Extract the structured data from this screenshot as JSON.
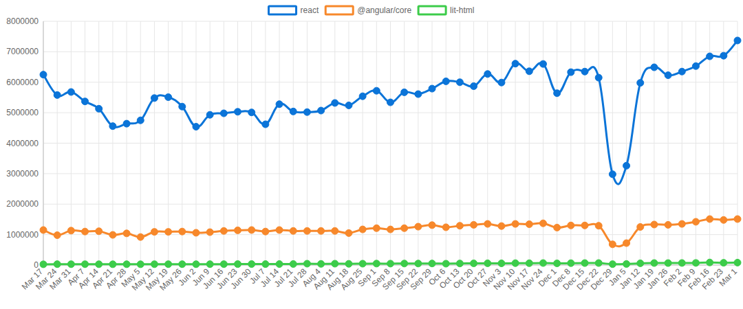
{
  "chart_data": {
    "type": "line",
    "categories": [
      "Mar 17",
      "Mar 24",
      "Mar 31",
      "Apr 7",
      "Apr 14",
      "Apr 21",
      "Apr 28",
      "May 5",
      "May 12",
      "May 19",
      "May 26",
      "Jun 2",
      "Jun 9",
      "Jun 16",
      "Jun 23",
      "Jun 30",
      "Jul 7",
      "Jul 14",
      "Jul 21",
      "Jul 28",
      "Aug 4",
      "Aug 11",
      "Aug 18",
      "Aug 25",
      "Sep 1",
      "Sep 8",
      "Sep 15",
      "Sep 22",
      "Sep 29",
      "Oct 6",
      "Oct 13",
      "Oct 20",
      "Oct 27",
      "Nov 3",
      "Nov 10",
      "Nov 17",
      "Nov 24",
      "Dec 1",
      "Dec 8",
      "Dec 15",
      "Dec 22",
      "Dec 29",
      "Jan 5",
      "Jan 12",
      "Jan 19",
      "Jan 26",
      "Feb 2",
      "Feb 9",
      "Feb 16",
      "Feb 23",
      "Mar 1"
    ],
    "series": [
      {
        "name": "react",
        "color": "#0b74d8",
        "values": [
          6250000,
          5580000,
          5680000,
          5370000,
          5130000,
          4560000,
          4640000,
          4750000,
          5480000,
          5510000,
          5200000,
          4540000,
          4930000,
          4980000,
          5030000,
          5010000,
          4620000,
          5280000,
          5040000,
          5020000,
          5070000,
          5320000,
          5240000,
          5540000,
          5720000,
          5340000,
          5670000,
          5610000,
          5790000,
          6030000,
          6000000,
          5870000,
          6270000,
          5990000,
          6610000,
          6360000,
          6600000,
          5640000,
          6330000,
          6350000,
          6150000,
          2980000,
          3260000,
          5980000,
          6490000,
          6230000,
          6350000,
          6530000,
          6850000,
          6870000,
          7370000
        ]
      },
      {
        "name": "@angular/core",
        "color": "#f7882b",
        "values": [
          1150000,
          980000,
          1130000,
          1100000,
          1110000,
          990000,
          1040000,
          920000,
          1090000,
          1090000,
          1100000,
          1060000,
          1080000,
          1120000,
          1140000,
          1150000,
          1100000,
          1150000,
          1120000,
          1120000,
          1120000,
          1120000,
          1050000,
          1170000,
          1210000,
          1170000,
          1210000,
          1260000,
          1310000,
          1240000,
          1290000,
          1320000,
          1350000,
          1280000,
          1350000,
          1340000,
          1370000,
          1230000,
          1300000,
          1300000,
          1290000,
          680000,
          720000,
          1250000,
          1330000,
          1320000,
          1350000,
          1420000,
          1510000,
          1480000,
          1510000
        ]
      },
      {
        "name": "lit-html",
        "color": "#3ccc4a",
        "values": [
          25000,
          30000,
          28000,
          28000,
          27000,
          26000,
          27000,
          26000,
          28000,
          29000,
          29000,
          28000,
          30000,
          30000,
          31000,
          32000,
          31000,
          33000,
          34000,
          45000,
          38000,
          45000,
          40000,
          45000,
          48000,
          47000,
          50000,
          50000,
          52000,
          45000,
          52000,
          55000,
          58000,
          56000,
          62000,
          60000,
          66000,
          55000,
          62000,
          65000,
          66000,
          30000,
          35000,
          58000,
          66000,
          65000,
          68000,
          70000,
          85000,
          75000,
          80000
        ]
      }
    ],
    "ylim": [
      0,
      8000000
    ],
    "yticks": [
      0,
      1000000,
      2000000,
      3000000,
      4000000,
      5000000,
      6000000,
      7000000,
      8000000
    ],
    "grid": true,
    "legend": "top",
    "marker": "circle",
    "line_style": "smooth"
  }
}
